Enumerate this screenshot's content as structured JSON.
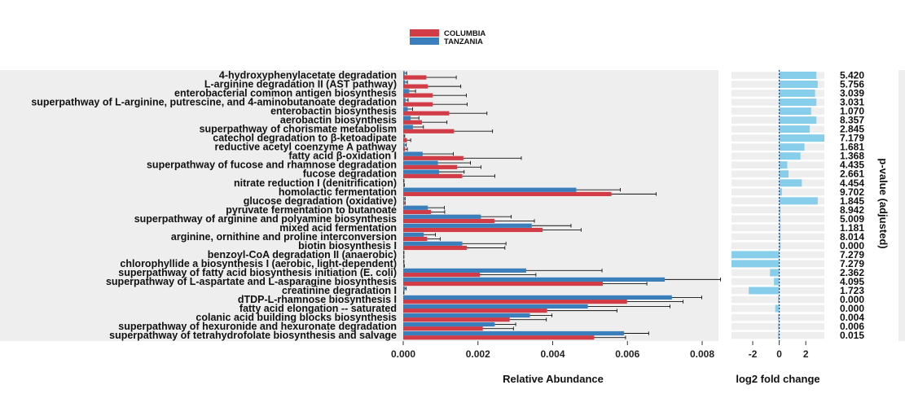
{
  "chart_data": {
    "type": "bar",
    "orientation": "horizontal",
    "legend": {
      "placement": "top-center",
      "entries": [
        {
          "label": "COLUMBIA",
          "color": "#d13c46"
        },
        {
          "label": "TANZANIA",
          "color": "#3a7fbb"
        }
      ]
    },
    "categories": [
      "4-hydroxyphenylacetate degradation",
      "L-arginine degradation II (AST pathway)",
      "enterobacterial common antigen biosynthesis",
      "superpathway of L-arginine, putrescine, and 4-aminobutanoate degradation",
      "enterobactin biosynthesis",
      "aerobactin biosynthesis",
      "superpathway of chorismate metabolism",
      "catechol degradation to &beta;-ketoadipate",
      "reductive acetyl coenzyme A pathway",
      "fatty acid &beta;-oxidation I",
      "superpathway of fucose and rhamnose degradation",
      "fucose degradation",
      "nitrate reduction I (denitrification)",
      "homolactic fermentation",
      "glucose degradation (oxidative)",
      "pyruvate fermentation to butanoate",
      "superpathway of arginine and polyamine biosynthesis",
      "mixed acid fermentation",
      "arginine, ornithine and proline interconversion",
      "biotin biosynthesis I",
      "benzoyl-CoA degradation II (anaerobic)",
      "chlorophyllide a biosynthesis I (aerobic, light-dependent)",
      "superpathway of fatty acid biosynthesis initiation (E. coli)",
      "superpathway of L-aspartate and L-asparagine biosynthesis",
      "creatinine degradation I",
      "dTDP-L-rhamnose biosynthesis I",
      "fatty acid elongation -- saturated",
      "colanic acid building blocks biosynthesis",
      "superpathway of hexuronide and hexuronate degradation",
      "superpathway of tetrahydrofolate biosynthesis and salvage"
    ],
    "series": [
      {
        "name": "COLUMBIA",
        "color": "#d13c46",
        "values": [
          0.00062,
          0.00066,
          0.00079,
          0.00079,
          0.00123,
          0.0005,
          0.00136,
          0.0001,
          5e-05,
          0.00161,
          0.00144,
          0.00158,
          2e-05,
          0.00557,
          3e-05,
          0.00074,
          0.00244,
          0.00373,
          0.00064,
          0.0017,
          1e-05,
          2e-05,
          0.00205,
          0.00534,
          1e-05,
          0.00599,
          0.00385,
          0.00285,
          0.00213,
          0.00511
        ],
        "errors": [
          0.0008,
          0.00088,
          0.0009,
          0.00092,
          0.00101,
          0.00067,
          0.00103,
          0.0001,
          6e-05,
          0.00155,
          0.00064,
          0.00087,
          1e-05,
          0.0012,
          2e-05,
          0.00037,
          0.00107,
          0.00103,
          0.00035,
          0.00102,
          1e-05,
          1e-05,
          0.0015,
          0.00118,
          1e-05,
          0.0015,
          0.00187,
          0.00098,
          0.00082,
          0.00084
        ]
      },
      {
        "name": "TANZANIA",
        "color": "#3a7fbb",
        "values": [
          4e-05,
          5e-05,
          0.00016,
          6e-05,
          0.00012,
          0.0002,
          0.00026,
          2e-05,
          4e-05,
          0.00052,
          0.00093,
          0.00096,
          1e-05,
          0.00463,
          3e-05,
          0.00066,
          0.00208,
          0.00344,
          0.00055,
          0.00158,
          1e-05,
          1e-05,
          0.00329,
          0.007,
          5e-05,
          0.00719,
          0.00494,
          0.00339,
          0.00245,
          0.00591
        ],
        "errors": [
          5e-05,
          6e-05,
          0.00017,
          7e-05,
          0.00013,
          0.00022,
          0.00028,
          2e-05,
          4e-05,
          0.00082,
          0.00087,
          0.00067,
          1e-05,
          0.00118,
          2e-05,
          0.00044,
          0.00081,
          0.00105,
          0.00031,
          0.00117,
          1e-05,
          1e-05,
          0.00203,
          0.00149,
          3e-05,
          0.0008,
          0.0022,
          0.00059,
          0.00056,
          0.00066
        ]
      }
    ],
    "x_axis": {
      "title": "Relative Abundance",
      "range": [
        0,
        0.008
      ],
      "ticks": [
        "0.000",
        "0.002",
        "0.004",
        "0.006",
        "0.008"
      ]
    },
    "fold_change": {
      "title": "log2 fold change",
      "range": [
        -3.6,
        3.4
      ],
      "ticks": [
        "-2",
        "0",
        "2"
      ],
      "tick_values": [
        -2,
        0,
        2
      ],
      "color": "#87ceeb",
      "values": [
        2.8,
        2.9,
        2.7,
        2.8,
        2.4,
        2.8,
        2.3,
        3.4,
        1.9,
        1.6,
        0.6,
        0.7,
        1.7,
        0.2,
        2.9,
        0.1,
        0.1,
        0.1,
        0.1,
        0.1,
        -3.6,
        -3.6,
        -0.7,
        -0.4,
        -2.3,
        -0.1,
        -0.3,
        -0.1,
        -0.1,
        -0.1
      ]
    },
    "p_values": {
      "title": "p-value (adjusted)",
      "values": [
        "5.420",
        "5.756",
        "3.039",
        "3.031",
        "1.070",
        "8.357",
        "2.845",
        "7.179",
        "1.681",
        "1.368",
        "4.435",
        "2.661",
        "4.454",
        "9.702",
        "1.845",
        "8.942",
        "5.009",
        "1.181",
        "8.014",
        "0.000",
        "7.279",
        "7.279",
        "2.362",
        "4.095",
        "1.723",
        "0.000",
        "0.000",
        "0.004",
        "0.006",
        "0.015"
      ]
    },
    "grid": false
  }
}
